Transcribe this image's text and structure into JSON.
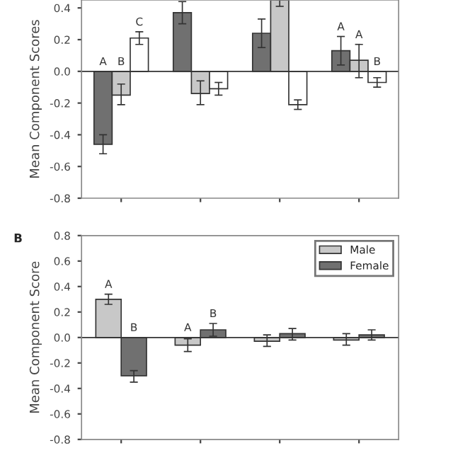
{
  "chart_data": [
    {
      "type": "bar",
      "ylabel": "Mean Component Scores",
      "categories": [
        null,
        null,
        null,
        null
      ],
      "series": [
        {
          "color": "#707070",
          "values": [
            -0.46,
            0.37,
            0.24,
            0.13
          ],
          "errors": [
            [
              -0.52,
              -0.4
            ],
            [
              0.3,
              0.44
            ],
            [
              0.15,
              0.33
            ],
            [
              0.04,
              0.22
            ]
          ],
          "value_labels": [
            "A",
            null,
            null,
            "A"
          ]
        },
        {
          "color": "#c8c8c8",
          "values": [
            -0.15,
            -0.14,
            0.45,
            0.07
          ],
          "errors": [
            [
              -0.21,
              -0.08
            ],
            [
              -0.21,
              -0.06
            ],
            [
              0.41,
              0.45
            ],
            [
              -0.04,
              0.17
            ]
          ],
          "value_labels": [
            "B",
            null,
            null,
            "A"
          ]
        },
        {
          "color": "#ffffff",
          "values": [
            0.21,
            -0.11,
            -0.21,
            -0.07
          ],
          "errors": [
            [
              0.17,
              0.25
            ],
            [
              -0.15,
              -0.07
            ],
            [
              -0.24,
              -0.18
            ],
            [
              -0.1,
              -0.04
            ]
          ],
          "value_labels": [
            "C",
            null,
            null,
            "B"
          ]
        }
      ],
      "ylim": [
        -0.8,
        0.45
      ],
      "yticks": [
        -0.8,
        -0.6,
        -0.4,
        -0.2,
        {
          "value": 0,
          "label": "0.0"
        },
        0.2,
        0.4
      ],
      "ref_lines": [
        {
          "axis": "y",
          "value": 0
        }
      ],
      "legend": false
    },
    {
      "type": "bar",
      "ylabel": "Mean Component Score",
      "annotations": [
        "B"
      ],
      "categories": [
        null,
        null,
        null,
        null
      ],
      "series": [
        {
          "name": "Male",
          "color": "#c8c8c8",
          "values": [
            0.3,
            -0.06,
            -0.03,
            -0.02
          ],
          "errors": [
            [
              0.26,
              0.34
            ],
            [
              -0.11,
              -0.01
            ],
            [
              -0.07,
              0.02
            ],
            [
              -0.06,
              0.03
            ]
          ],
          "value_labels": [
            "A",
            "A",
            null,
            null
          ]
        },
        {
          "name": "Female",
          "color": "#707070",
          "values": [
            -0.3,
            0.06,
            0.03,
            0.02
          ],
          "errors": [
            [
              -0.35,
              -0.26
            ],
            [
              0.01,
              0.11
            ],
            [
              -0.02,
              0.07
            ],
            [
              -0.02,
              0.06
            ]
          ],
          "value_labels": [
            "B",
            "B",
            null,
            null
          ]
        }
      ],
      "ylim": [
        -0.8,
        0.8
      ],
      "yticks": [
        -0.8,
        -0.6,
        -0.4,
        -0.2,
        {
          "value": 0,
          "label": "0.0"
        },
        0.2,
        0.4,
        0.6,
        0.8
      ],
      "ref_lines": [
        {
          "axis": "y",
          "value": 0
        }
      ],
      "legend": "top right"
    }
  ]
}
